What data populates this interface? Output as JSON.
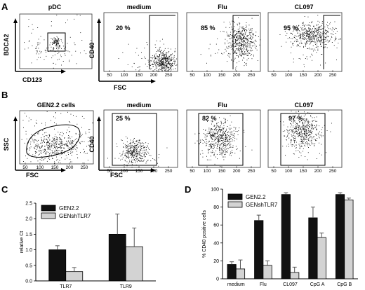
{
  "panel_labels": [
    "A",
    "B",
    "C",
    "D"
  ],
  "row_a": {
    "gating": {
      "title": "pDC",
      "xlabel": "CD123",
      "ylabel": "BDCA2"
    },
    "ylabel": "CD40",
    "xlabel": "FSC",
    "x_ticks": [
      "50",
      "100",
      "150",
      "200",
      "250"
    ],
    "panels": [
      {
        "title": "medium",
        "percent": "20 %"
      },
      {
        "title": "Flu",
        "percent": "85 %"
      },
      {
        "title": "CL097",
        "percent": "95 %"
      }
    ]
  },
  "row_b": {
    "gating": {
      "title": "GEN2.2 cells",
      "xlabel": "FSC",
      "ylabel": "SSC",
      "x_ticks": [
        "50",
        "100",
        "150",
        "200",
        "250"
      ]
    },
    "ylabel": "CD40",
    "xlabel": "FSC",
    "x_ticks": [
      "50",
      "100",
      "150",
      "200",
      "250"
    ],
    "panels": [
      {
        "title": "medium",
        "percent": "25 %"
      },
      {
        "title": "Flu",
        "percent": "82 %"
      },
      {
        "title": "CL097",
        "percent": "97 %"
      }
    ]
  },
  "colors": {
    "gen22": "#111111",
    "genshtlr7": "#d3d3d3"
  },
  "chart_data": [
    {
      "type": "bar",
      "panel": "C",
      "categories": [
        "TLR7",
        "TLR9"
      ],
      "series": [
        {
          "name": "GEN2.2",
          "values": [
            1.0,
            1.5
          ],
          "errors": [
            0.13,
            0.65
          ]
        },
        {
          "name": "GENshTLR7",
          "values": [
            0.3,
            1.1
          ],
          "errors": [
            0.13,
            0.6
          ]
        }
      ],
      "ylabel": "relative Ct",
      "ylim": [
        0,
        2.5
      ],
      "yticks": [
        "0.0",
        "0.5",
        "1.0",
        "1.5",
        "2.0",
        "2.5"
      ],
      "legend": "top-left"
    },
    {
      "type": "bar",
      "panel": "D",
      "categories": [
        "medium",
        "Flu",
        "CL097",
        "CpG A",
        "CpG B"
      ],
      "series": [
        {
          "name": "GEN2.2",
          "values": [
            16,
            65,
            94,
            68,
            94
          ],
          "errors": [
            3,
            6,
            2,
            12,
            2
          ]
        },
        {
          "name": "GENshTLR7",
          "values": [
            11,
            15,
            7,
            46,
            88
          ],
          "errors": [
            10,
            5,
            6,
            5,
            2
          ]
        }
      ],
      "ylabel": "% CD40 positive cells",
      "ylim": [
        0,
        100
      ],
      "yticks": [
        "0",
        "20",
        "40",
        "60",
        "80",
        "100"
      ],
      "legend": "top-left"
    }
  ]
}
